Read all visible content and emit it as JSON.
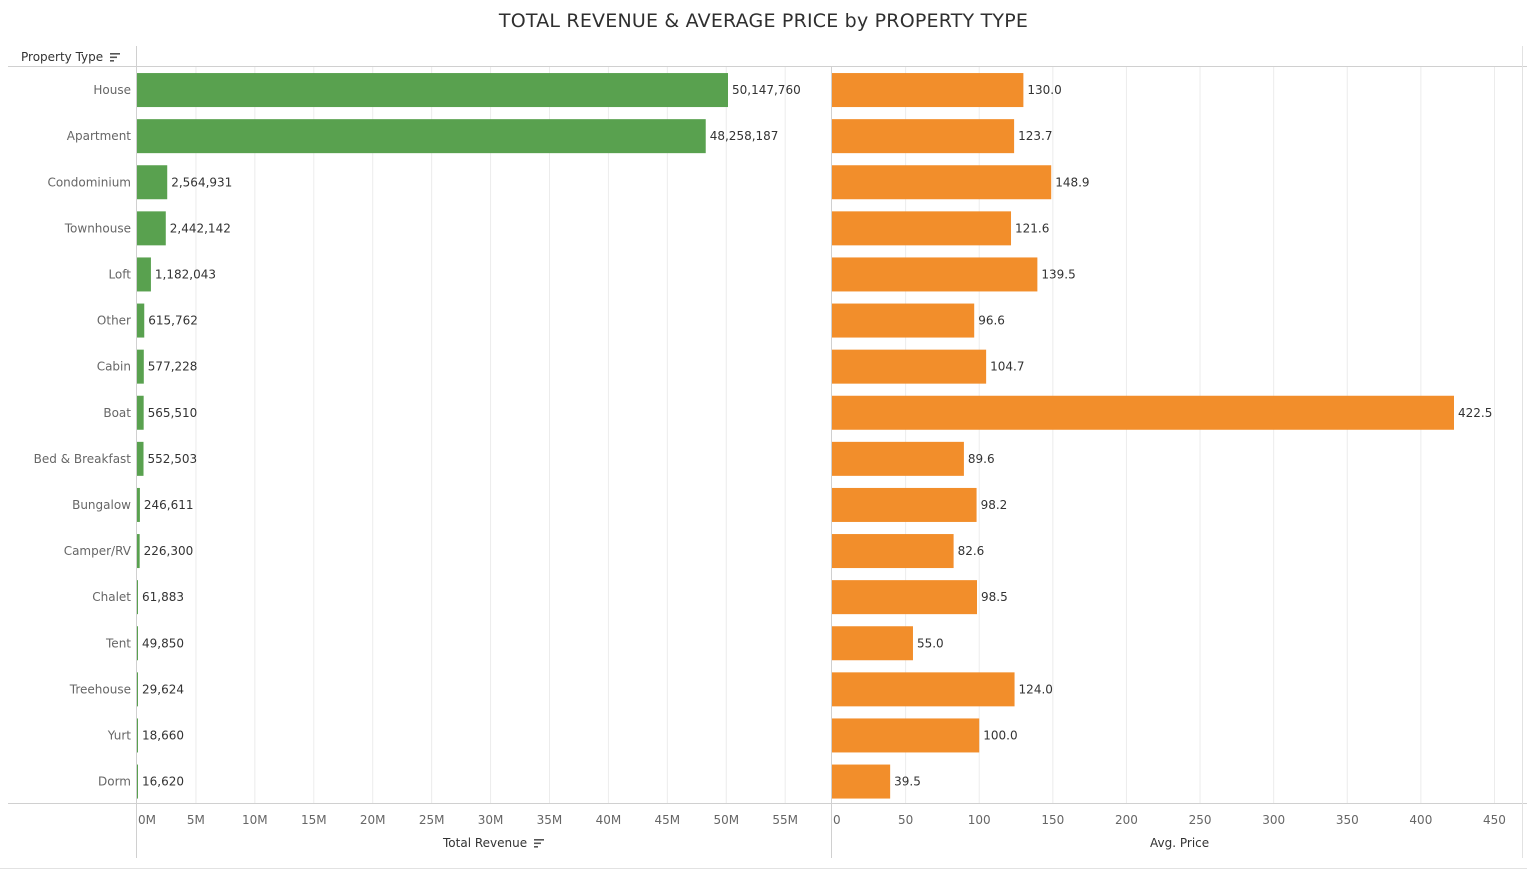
{
  "title": "TOTAL REVENUE & AVERAGE PRICE by PROPERTY TYPE",
  "row_header": "Property Type",
  "colors": {
    "revenue_bar": "#59a14f",
    "price_bar": "#f28e2b",
    "grid": "#ececec",
    "axis_line": "#d0d0d0",
    "label": "#666666",
    "value": "#333333"
  },
  "chart_data": [
    {
      "type": "bar",
      "orientation": "horizontal",
      "categories": [
        "House",
        "Apartment",
        "Condominium",
        "Townhouse",
        "Loft",
        "Other",
        "Cabin",
        "Boat",
        "Bed & Breakfast",
        "Bungalow",
        "Camper/RV",
        "Chalet",
        "Tent",
        "Treehouse",
        "Yurt",
        "Dorm"
      ],
      "values": [
        50147760,
        48258187,
        2564931,
        2442142,
        1182043,
        615762,
        577228,
        565510,
        552503,
        246611,
        226300,
        61883,
        49850,
        29624,
        18660,
        16620
      ],
      "value_labels": [
        "50,147,760",
        "48,258,187",
        "2,564,931",
        "2,442,142",
        "1,182,043",
        "615,762",
        "577,228",
        "565,510",
        "552,503",
        "246,611",
        "226,300",
        "61,883",
        "49,850",
        "29,624",
        "18,660",
        "16,620"
      ],
      "xlabel": "Total Revenue",
      "ticks": [
        0,
        5000000,
        10000000,
        15000000,
        20000000,
        25000000,
        30000000,
        35000000,
        40000000,
        45000000,
        50000000,
        55000000
      ],
      "tick_labels": [
        "0M",
        "5M",
        "10M",
        "15M",
        "20M",
        "25M",
        "30M",
        "35M",
        "40M",
        "45M",
        "50M",
        "55M"
      ],
      "xlim": [
        0,
        58000000
      ],
      "grid": true
    },
    {
      "type": "bar",
      "orientation": "horizontal",
      "categories": [
        "House",
        "Apartment",
        "Condominium",
        "Townhouse",
        "Loft",
        "Other",
        "Cabin",
        "Boat",
        "Bed & Breakfast",
        "Bungalow",
        "Camper/RV",
        "Chalet",
        "Tent",
        "Treehouse",
        "Yurt",
        "Dorm"
      ],
      "values": [
        130.0,
        123.7,
        148.9,
        121.6,
        139.5,
        96.6,
        104.7,
        422.5,
        89.6,
        98.2,
        82.6,
        98.5,
        55.0,
        124.0,
        100.0,
        39.5
      ],
      "value_labels": [
        "130.0",
        "123.7",
        "148.9",
        "121.6",
        "139.5",
        "96.6",
        "104.7",
        "422.5",
        "89.6",
        "98.2",
        "82.6",
        "98.5",
        "55.0",
        "124.0",
        "100.0",
        "39.5"
      ],
      "xlabel": "Avg. Price",
      "ticks": [
        0,
        50,
        100,
        150,
        200,
        250,
        300,
        350,
        400,
        450
      ],
      "tick_labels": [
        "0",
        "50",
        "100",
        "150",
        "200",
        "250",
        "300",
        "350",
        "400",
        "450"
      ],
      "xlim": [
        0,
        470
      ],
      "grid": true
    }
  ]
}
